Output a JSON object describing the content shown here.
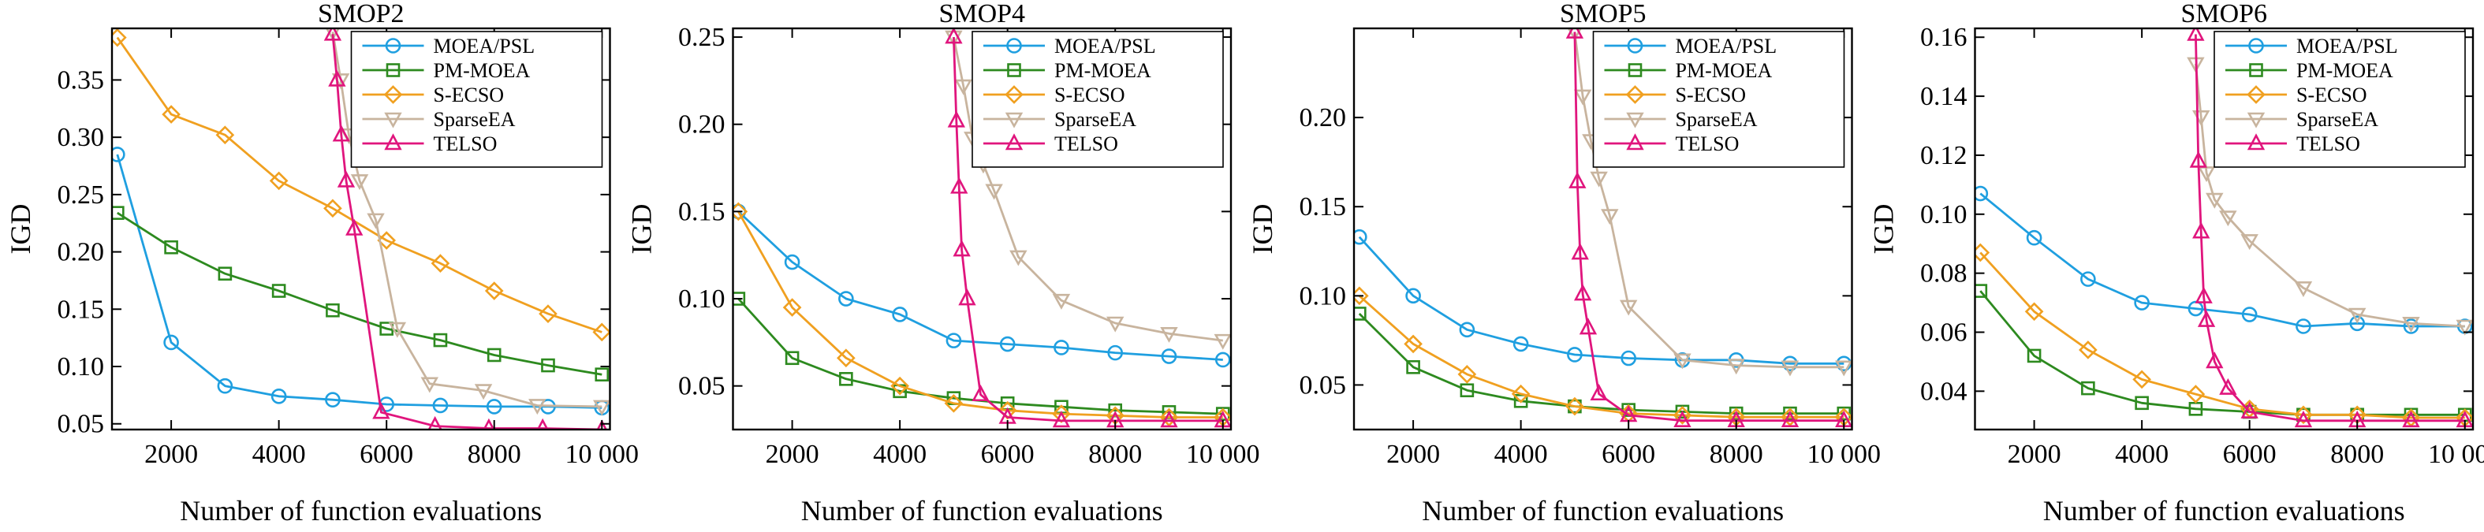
{
  "chart_data": [
    {
      "type": "line",
      "title": "SMOP2",
      "xlabel": "Number of function evaluations",
      "ylabel": "IGD",
      "xlim": [
        900,
        10150
      ],
      "ylim": [
        0.045,
        0.395
      ],
      "xticks": [
        2000,
        4000,
        6000,
        8000,
        10000
      ],
      "xtick_labels": [
        "2000",
        "4000",
        "6000",
        "8000",
        "10 000"
      ],
      "yticks": [
        0.05,
        0.1,
        0.15,
        0.2,
        0.25,
        0.3,
        0.35
      ],
      "ytick_labels": [
        "0.05",
        "0.10",
        "0.15",
        "0.20",
        "0.25",
        "0.30",
        "0.35"
      ],
      "legend_position": "top-right",
      "series": [
        {
          "name": "MOEA/PSL",
          "color": "#1f9fe0",
          "marker": "circle",
          "x": [
            1000,
            2000,
            3000,
            4000,
            5000,
            6000,
            7000,
            8000,
            9000,
            10000
          ],
          "y": [
            0.285,
            0.121,
            0.083,
            0.074,
            0.071,
            0.067,
            0.066,
            0.065,
            0.065,
            0.064
          ]
        },
        {
          "name": "PM-MOEA",
          "color": "#2d8a1f",
          "marker": "square",
          "x": [
            1000,
            2000,
            3000,
            4000,
            5000,
            6000,
            7000,
            8000,
            9000,
            10000
          ],
          "y": [
            0.234,
            0.204,
            0.181,
            0.166,
            0.149,
            0.133,
            0.123,
            0.11,
            0.101,
            0.093
          ]
        },
        {
          "name": "S-ECSO",
          "color": "#f0a020",
          "marker": "diamond",
          "x": [
            1000,
            2000,
            3000,
            4000,
            5000,
            6000,
            7000,
            8000,
            9000,
            10000
          ],
          "y": [
            0.387,
            0.32,
            0.302,
            0.262,
            0.238,
            0.21,
            0.19,
            0.166,
            0.146,
            0.13
          ]
        },
        {
          "name": "SparseEA",
          "color": "#c8b49e",
          "marker": "triangle-down",
          "x": [
            5000,
            5150,
            5300,
            5500,
            5800,
            6200,
            6800,
            7800,
            8800,
            10000
          ],
          "y": [
            0.392,
            0.35,
            0.302,
            0.262,
            0.228,
            0.133,
            0.085,
            0.079,
            0.066,
            0.065
          ]
        },
        {
          "name": "TELSO",
          "color": "#e0157d",
          "marker": "triangle-up",
          "x": [
            5000,
            5080,
            5160,
            5250,
            5400,
            5900,
            6900,
            7900,
            8900,
            10000
          ],
          "y": [
            0.39,
            0.35,
            0.302,
            0.262,
            0.22,
            0.06,
            0.048,
            0.046,
            0.046,
            0.045
          ]
        }
      ]
    },
    {
      "type": "line",
      "title": "SMOP4",
      "xlabel": "Number of function evaluations",
      "ylabel": "IGD",
      "xlim": [
        900,
        10150
      ],
      "ylim": [
        0.025,
        0.255
      ],
      "xticks": [
        2000,
        4000,
        6000,
        8000,
        10000
      ],
      "xtick_labels": [
        "2000",
        "4000",
        "6000",
        "8000",
        "10 000"
      ],
      "yticks": [
        0.05,
        0.1,
        0.15,
        0.2,
        0.25
      ],
      "ytick_labels": [
        "0.05",
        "0.10",
        "0.15",
        "0.20",
        "0.25"
      ],
      "legend_position": "top-right",
      "series": [
        {
          "name": "MOEA/PSL",
          "color": "#1f9fe0",
          "marker": "circle",
          "x": [
            1000,
            2000,
            3000,
            4000,
            5000,
            6000,
            7000,
            8000,
            9000,
            10000
          ],
          "y": [
            0.15,
            0.121,
            0.1,
            0.091,
            0.076,
            0.074,
            0.072,
            0.069,
            0.067,
            0.065
          ]
        },
        {
          "name": "PM-MOEA",
          "color": "#2d8a1f",
          "marker": "square",
          "x": [
            1000,
            2000,
            3000,
            4000,
            5000,
            6000,
            7000,
            8000,
            9000,
            10000
          ],
          "y": [
            0.1,
            0.066,
            0.054,
            0.047,
            0.043,
            0.04,
            0.038,
            0.036,
            0.035,
            0.034
          ]
        },
        {
          "name": "S-ECSO",
          "color": "#f0a020",
          "marker": "diamond",
          "x": [
            1000,
            2000,
            3000,
            4000,
            5000,
            6000,
            7000,
            8000,
            9000,
            10000
          ],
          "y": [
            0.15,
            0.095,
            0.066,
            0.05,
            0.04,
            0.036,
            0.034,
            0.033,
            0.032,
            0.032
          ]
        },
        {
          "name": "SparseEA",
          "color": "#c8b49e",
          "marker": "triangle-down",
          "x": [
            5000,
            5180,
            5350,
            5550,
            5750,
            6200,
            7000,
            8000,
            9000,
            10000
          ],
          "y": [
            0.25,
            0.222,
            0.192,
            0.177,
            0.162,
            0.124,
            0.099,
            0.086,
            0.08,
            0.076
          ]
        },
        {
          "name": "TELSO",
          "color": "#e0157d",
          "marker": "triangle-up",
          "x": [
            5000,
            5050,
            5100,
            5150,
            5250,
            5500,
            6000,
            7000,
            8000,
            9000,
            10000
          ],
          "y": [
            0.25,
            0.202,
            0.164,
            0.128,
            0.1,
            0.045,
            0.032,
            0.03,
            0.03,
            0.03,
            0.03
          ]
        }
      ]
    },
    {
      "type": "line",
      "title": "SMOP5",
      "xlabel": "Number of function evaluations",
      "ylabel": "IGD",
      "xlim": [
        900,
        10150
      ],
      "ylim": [
        0.025,
        0.25
      ],
      "xticks": [
        2000,
        4000,
        6000,
        8000,
        10000
      ],
      "xtick_labels": [
        "2000",
        "4000",
        "6000",
        "8000",
        "10 000"
      ],
      "yticks": [
        0.05,
        0.1,
        0.15,
        0.2
      ],
      "ytick_labels": [
        "0.05",
        "0.10",
        "0.15",
        "0.20"
      ],
      "legend_position": "top-right",
      "series": [
        {
          "name": "MOEA/PSL",
          "color": "#1f9fe0",
          "marker": "circle",
          "x": [
            1000,
            2000,
            3000,
            4000,
            5000,
            6000,
            7000,
            8000,
            9000,
            10000
          ],
          "y": [
            0.133,
            0.1,
            0.081,
            0.073,
            0.067,
            0.065,
            0.064,
            0.064,
            0.062,
            0.062
          ]
        },
        {
          "name": "PM-MOEA",
          "color": "#2d8a1f",
          "marker": "square",
          "x": [
            1000,
            2000,
            3000,
            4000,
            5000,
            6000,
            7000,
            8000,
            9000,
            10000
          ],
          "y": [
            0.09,
            0.06,
            0.047,
            0.041,
            0.038,
            0.036,
            0.035,
            0.034,
            0.034,
            0.034
          ]
        },
        {
          "name": "S-ECSO",
          "color": "#f0a020",
          "marker": "diamond",
          "x": [
            1000,
            2000,
            3000,
            4000,
            5000,
            6000,
            7000,
            8000,
            9000,
            10000
          ],
          "y": [
            0.1,
            0.073,
            0.056,
            0.045,
            0.038,
            0.034,
            0.033,
            0.032,
            0.032,
            0.032
          ]
        },
        {
          "name": "SparseEA",
          "color": "#c8b49e",
          "marker": "triangle-down",
          "x": [
            5000,
            5150,
            5300,
            5450,
            5650,
            6000,
            7000,
            8000,
            9000,
            10000
          ],
          "y": [
            0.248,
            0.212,
            0.187,
            0.166,
            0.145,
            0.094,
            0.064,
            0.061,
            0.06,
            0.06
          ]
        },
        {
          "name": "TELSO",
          "color": "#e0157d",
          "marker": "triangle-up",
          "x": [
            5000,
            5050,
            5100,
            5150,
            5250,
            5450,
            6000,
            7000,
            8000,
            9000,
            10000
          ],
          "y": [
            0.248,
            0.164,
            0.124,
            0.101,
            0.082,
            0.045,
            0.033,
            0.03,
            0.03,
            0.03,
            0.03
          ]
        }
      ]
    },
    {
      "type": "line",
      "title": "SMOP6",
      "xlabel": "Number of function evaluations",
      "ylabel": "IGD",
      "xlim": [
        900,
        10150
      ],
      "ylim": [
        0.027,
        0.163
      ],
      "xticks": [
        2000,
        4000,
        6000,
        8000,
        10000
      ],
      "xtick_labels": [
        "2000",
        "4000",
        "6000",
        "8000",
        "10 000"
      ],
      "yticks": [
        0.04,
        0.06,
        0.08,
        0.1,
        0.12,
        0.14,
        0.16
      ],
      "ytick_labels": [
        "0.04",
        "0.06",
        "0.08",
        "0.10",
        "0.12",
        "0.14",
        "0.16"
      ],
      "legend_position": "top-right",
      "series": [
        {
          "name": "MOEA/PSL",
          "color": "#1f9fe0",
          "marker": "circle",
          "x": [
            1000,
            2000,
            3000,
            4000,
            5000,
            6000,
            7000,
            8000,
            9000,
            10000
          ],
          "y": [
            0.107,
            0.092,
            0.078,
            0.07,
            0.068,
            0.066,
            0.062,
            0.063,
            0.062,
            0.062
          ]
        },
        {
          "name": "PM-MOEA",
          "color": "#2d8a1f",
          "marker": "square",
          "x": [
            1000,
            2000,
            3000,
            4000,
            5000,
            6000,
            7000,
            8000,
            9000,
            10000
          ],
          "y": [
            0.074,
            0.052,
            0.041,
            0.036,
            0.034,
            0.033,
            0.032,
            0.032,
            0.032,
            0.032
          ]
        },
        {
          "name": "S-ECSO",
          "color": "#f0a020",
          "marker": "diamond",
          "x": [
            1000,
            2000,
            3000,
            4000,
            5000,
            6000,
            7000,
            8000,
            9000,
            10000
          ],
          "y": [
            0.087,
            0.067,
            0.054,
            0.044,
            0.039,
            0.034,
            0.032,
            0.032,
            0.031,
            0.031
          ]
        },
        {
          "name": "SparseEA",
          "color": "#c8b49e",
          "marker": "triangle-down",
          "x": [
            5000,
            5100,
            5200,
            5350,
            5600,
            6000,
            7000,
            8000,
            9000,
            10000
          ],
          "y": [
            0.151,
            0.133,
            0.114,
            0.105,
            0.099,
            0.091,
            0.075,
            0.066,
            0.063,
            0.062
          ]
        },
        {
          "name": "TELSO",
          "color": "#e0157d",
          "marker": "triangle-up",
          "x": [
            5000,
            5050,
            5100,
            5150,
            5200,
            5350,
            5600,
            6000,
            7000,
            8000,
            9000,
            10000
          ],
          "y": [
            0.161,
            0.118,
            0.094,
            0.072,
            0.064,
            0.05,
            0.041,
            0.033,
            0.03,
            0.03,
            0.03,
            0.03
          ]
        }
      ]
    }
  ]
}
